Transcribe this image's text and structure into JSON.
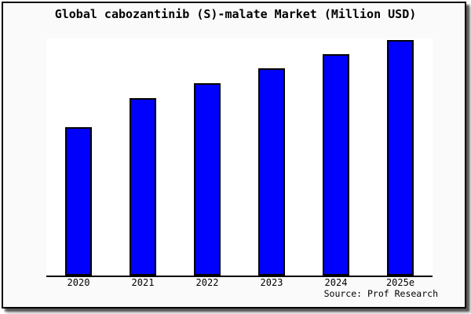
{
  "window": {
    "background_color": "#fafafa",
    "frame_border_color": "#000000",
    "plot_background_color": "#ffffff"
  },
  "chart_data": {
    "type": "bar",
    "title": "Global cabozantinib (S)-malate Market (Million USD)",
    "categories": [
      "2020",
      "2021",
      "2022",
      "2023",
      "2024",
      "2025e"
    ],
    "values": [
      62.6,
      74.8,
      81.1,
      87.4,
      93.4,
      99.3
    ],
    "values_note": "No y-axis scale is rendered in the image; values are relative estimates read from bar heights with the 2025e bar ~ 100.",
    "xlabel": "",
    "ylabel": "",
    "ylim": [
      0,
      100
    ],
    "grid": false,
    "legend": "none",
    "bar_color": "#0000ff",
    "bar_border_color": "#000000",
    "axis_line_color": "#000000"
  },
  "source": {
    "text": "Source: Prof Research"
  }
}
